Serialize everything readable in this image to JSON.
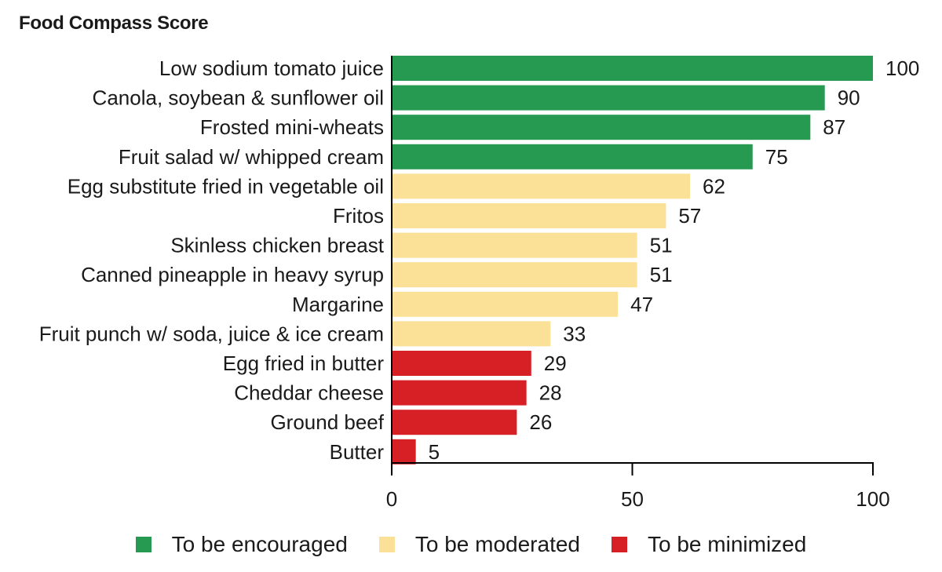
{
  "chart_data": {
    "type": "bar",
    "orientation": "horizontal",
    "title": "Food Compass Score",
    "xlabel": "",
    "ylabel": "",
    "xlim": [
      0,
      100
    ],
    "xticks": [
      0,
      50,
      100
    ],
    "grid": false,
    "legend_position": "bottom-center",
    "categories": [
      "Low sodium tomato juice",
      "Canola, soybean & sunflower oil",
      "Frosted mini-wheats",
      "Fruit salad w/ whipped cream",
      "Egg substitute fried in vegetable oil",
      "Fritos",
      "Skinless chicken breast",
      "Canned pineapple in heavy syrup",
      "Margarine",
      "Fruit punch w/ soda, juice & ice cream",
      "Egg fried in butter",
      "Cheddar cheese",
      "Ground beef",
      "Butter"
    ],
    "values": [
      100,
      90,
      87,
      75,
      62,
      57,
      51,
      51,
      47,
      33,
      29,
      28,
      26,
      5
    ],
    "groups": [
      "encouraged",
      "encouraged",
      "encouraged",
      "encouraged",
      "moderated",
      "moderated",
      "moderated",
      "moderated",
      "moderated",
      "moderated",
      "minimized",
      "minimized",
      "minimized",
      "minimized"
    ],
    "legend": [
      {
        "key": "encouraged",
        "label": "To be encouraged",
        "color": "#279a51"
      },
      {
        "key": "moderated",
        "label": "To be moderated",
        "color": "#fbe197"
      },
      {
        "key": "minimized",
        "label": "To be minimized",
        "color": "#d71f26"
      }
    ]
  }
}
